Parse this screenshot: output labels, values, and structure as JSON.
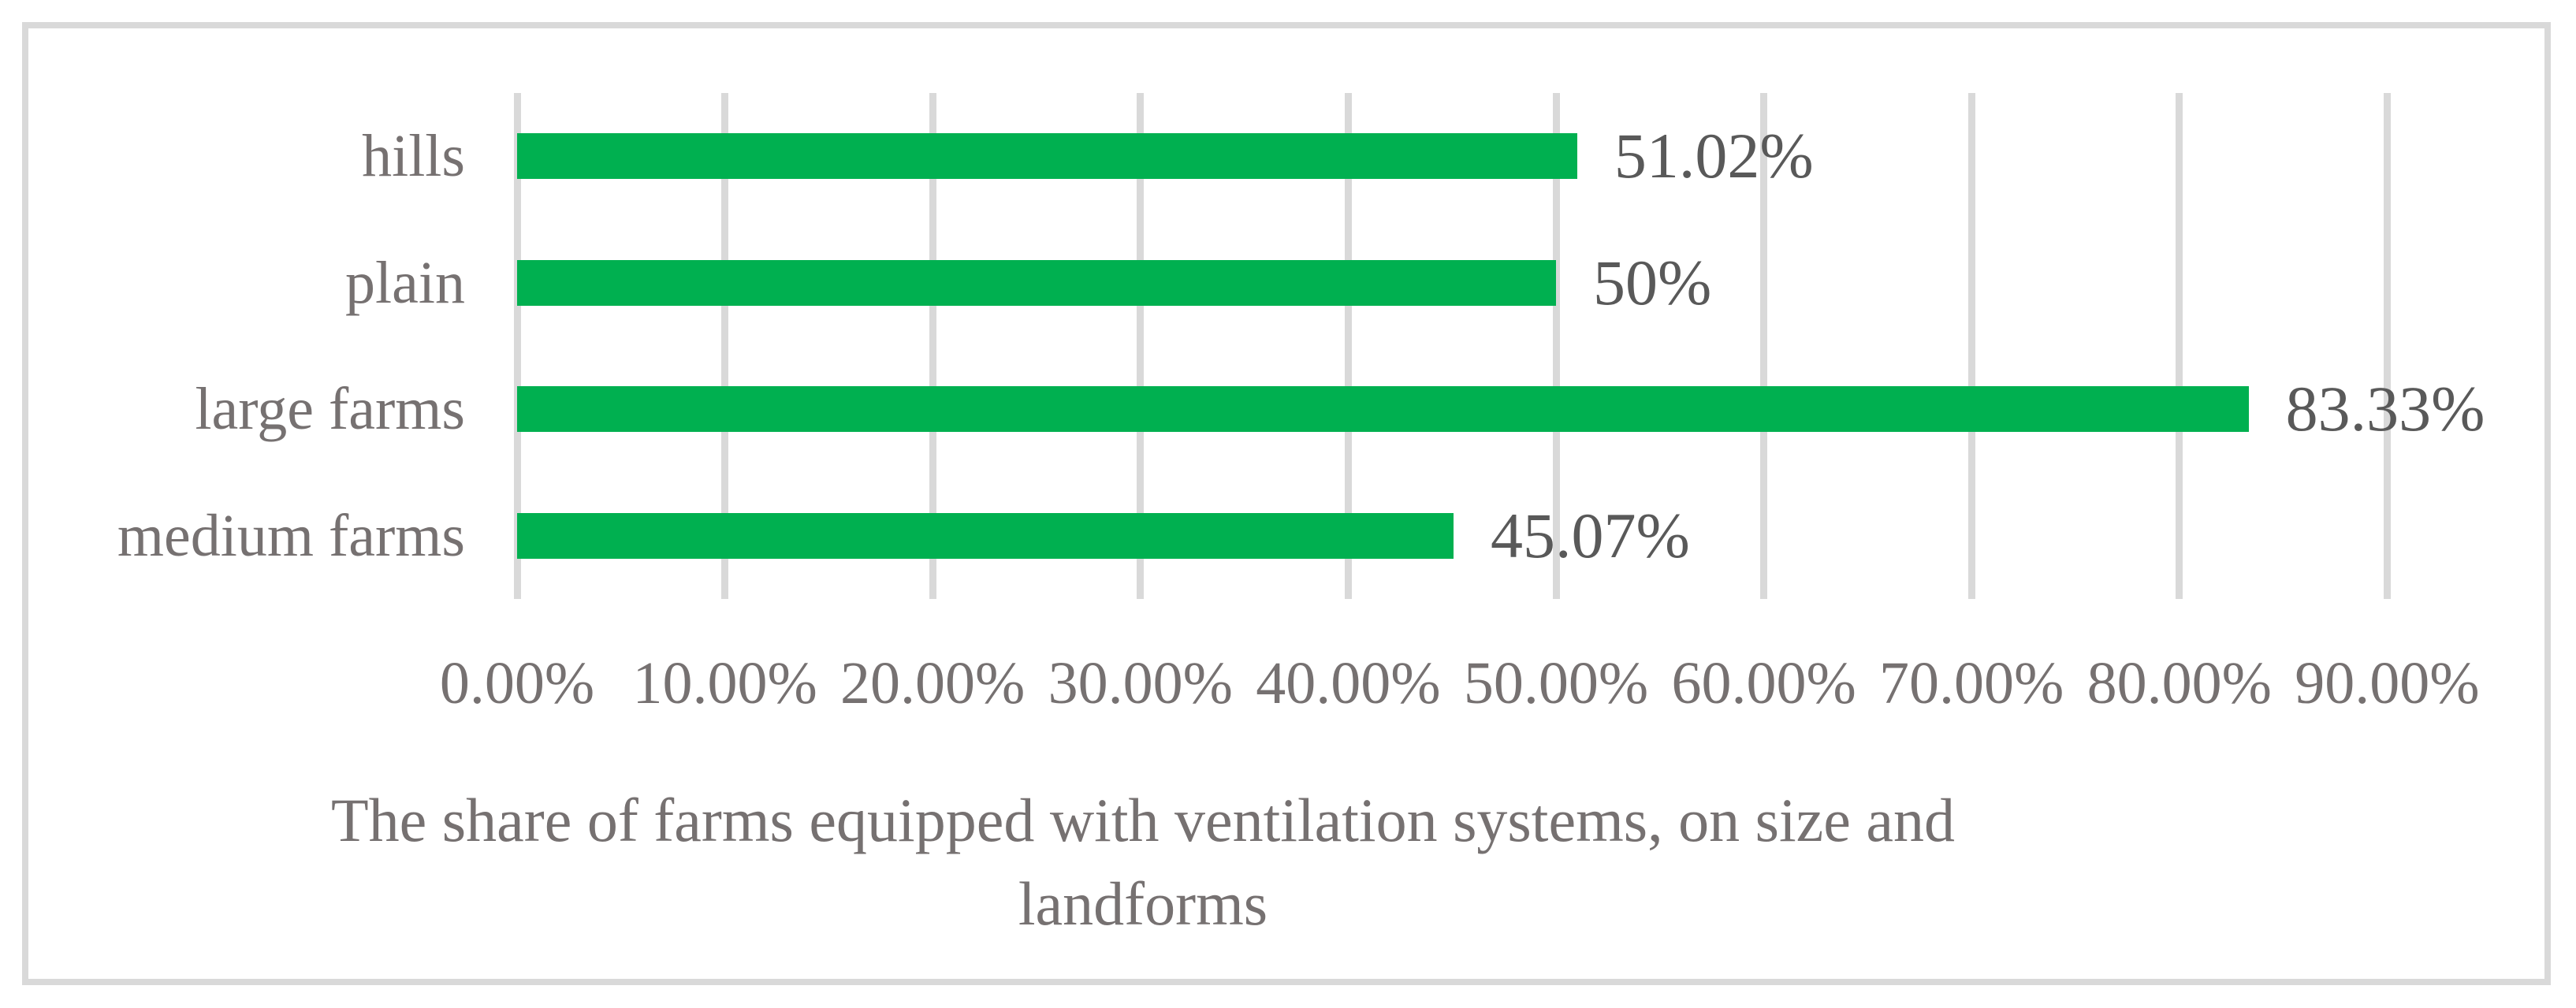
{
  "chart_data": {
    "type": "bar",
    "orientation": "horizontal",
    "title": "The share of farms equipped with ventilation systems, on size and landforms",
    "title_lines": [
      "The share of farms equipped with ventilation systems, on size and",
      "landforms"
    ],
    "categories": [
      "hills",
      "plain",
      "large farms",
      "medium farms"
    ],
    "values": [
      51.02,
      50,
      83.33,
      45.07
    ],
    "value_labels": [
      "51.02%",
      "50%",
      "83.33%",
      "45.07%"
    ],
    "x_tick_labels": [
      "0.00%",
      "10.00%",
      "20.00%",
      "30.00%",
      "40.00%",
      "50.00%",
      "60.00%",
      "70.00%",
      "80.00%",
      "90.00%"
    ],
    "x_tick_values": [
      0,
      10,
      20,
      30,
      40,
      50,
      60,
      70,
      80,
      90
    ],
    "xlim": [
      0,
      90
    ],
    "grid": true,
    "legend": false,
    "colors": {
      "bar": "#00B050",
      "gridline": "#D9D9D9",
      "frame_border": "#D9D9D9",
      "axis_text": "#767171",
      "category_text": "#767171",
      "value_label_text": "#595959",
      "title_text": "#767171",
      "background": "#FFFFFF"
    }
  }
}
